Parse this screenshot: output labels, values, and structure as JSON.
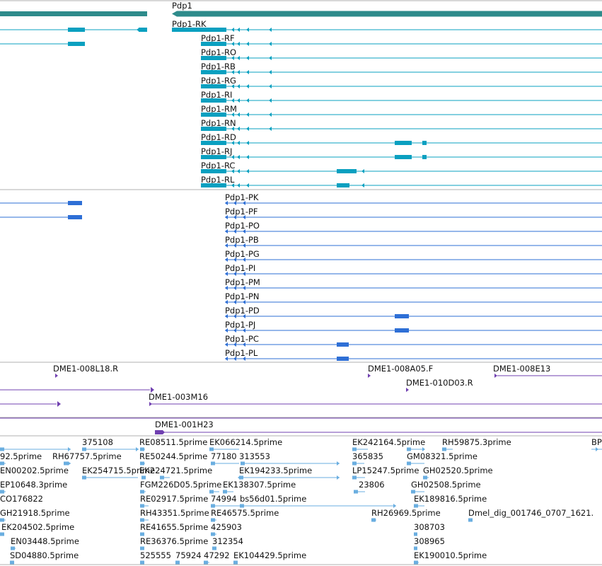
{
  "colors": {
    "gene": "#2e8b8b",
    "transcript_rna": "#0aa0c0",
    "transcript_protein": "#2e6fd6",
    "clone": "#7040b0",
    "est": "#6aaee0",
    "divider": "#b0b0b0"
  },
  "gene": {
    "label": "Pdp1"
  },
  "rna_transcripts": [
    "Pdp1-RK",
    "Pdp1-RF",
    "Pdp1-RO",
    "Pdp1-RB",
    "Pdp1-RG",
    "Pdp1-RI",
    "Pdp1-RM",
    "Pdp1-RN",
    "Pdp1-RD",
    "Pdp1-RJ",
    "Pdp1-RC",
    "Pdp1-RL"
  ],
  "protein_transcripts": [
    "Pdp1-PK",
    "Pdp1-PF",
    "Pdp1-PO",
    "Pdp1-PB",
    "Pdp1-PG",
    "Pdp1-PI",
    "Pdp1-PM",
    "Pdp1-PN",
    "Pdp1-PD",
    "Pdp1-PJ",
    "Pdp1-PC",
    "Pdp1-PL"
  ],
  "clones": [
    "DME1-008L18.R",
    "DME1-008A05.F",
    "DME1-008E13",
    "DME1-010D03.R",
    "DME1-003M16",
    "DME1-001H23"
  ],
  "est_labels": [
    "375108",
    "RE08511.5prime",
    "EK066214.5prime",
    "EK242164.5prime",
    "RH59875.3prime",
    "BP",
    "92.5prime",
    "RH67757.5prime",
    "RE50244.5prime",
    "77180",
    "313553",
    "365835",
    "GM08321.5prime",
    "EN00202.5prime",
    "EK254715.5prime",
    "EK224721.5prime",
    "EK194233.5prime",
    "LP15247.5prime",
    "GH02520.5prime",
    "EP10648.3prime",
    "FGM226D05.5prime",
    "EK138307.5prime",
    "23806",
    "GH02508.5prime",
    "RE02917.5prime",
    "74994",
    "bs56d01.5prime",
    "EK189816.5prime",
    "GH21918.5prime",
    "RH43351.5prime",
    "RE46575.5prime",
    "RH26969.5prime",
    "Dmel_dig_001746_0707_1621.",
    "CO176822",
    "EK204502.5prime",
    "RE41655.5prime",
    "425903",
    "308703",
    "EN03448.5prime",
    "RE36376.5prime",
    "312354",
    "308965",
    "SD04880.5prime",
    "525555",
    "75924",
    "47292",
    "EK104429.5prime",
    "EK190010.5prime"
  ]
}
